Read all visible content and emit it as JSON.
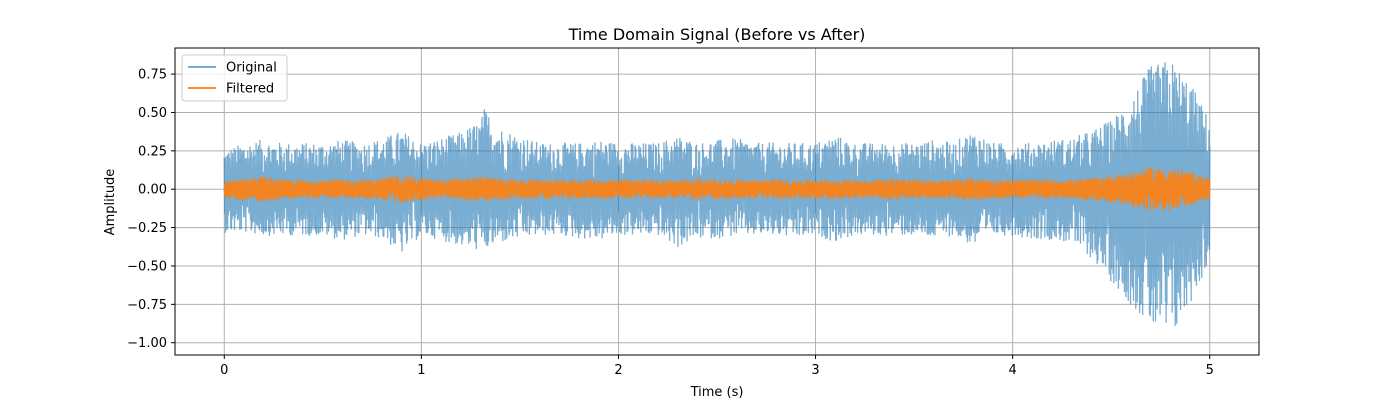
{
  "chart_data": {
    "type": "line",
    "title": "Time Domain Signal (Before vs After)",
    "xlabel": "Time (s)",
    "ylabel": "Amplitude",
    "xlim": [
      -0.25,
      5.25
    ],
    "ylim": [
      -1.08,
      0.92
    ],
    "x_ticks": [
      0,
      1,
      2,
      3,
      4,
      5
    ],
    "x_tick_labels": [
      "0",
      "1",
      "2",
      "3",
      "4",
      "5"
    ],
    "y_ticks": [
      -1.0,
      -0.75,
      -0.5,
      -0.25,
      0.0,
      0.25,
      0.5,
      0.75
    ],
    "y_tick_labels": [
      "−1.00",
      "−0.75",
      "−0.50",
      "−0.25",
      "0.00",
      "0.25",
      "0.50",
      "0.75"
    ],
    "grid": true,
    "legend_position": "top-left",
    "series": [
      {
        "name": "Original",
        "color": "#1f77b4",
        "opacity": 0.6,
        "x": [
          0.0,
          0.1,
          0.2,
          0.3,
          0.4,
          0.5,
          0.6,
          0.7,
          0.8,
          0.9,
          1.0,
          1.1,
          1.2,
          1.3,
          1.32,
          1.4,
          1.5,
          1.6,
          1.7,
          1.8,
          1.9,
          2.0,
          2.1,
          2.2,
          2.3,
          2.4,
          2.5,
          2.6,
          2.7,
          2.8,
          2.9,
          3.0,
          3.1,
          3.2,
          3.3,
          3.4,
          3.5,
          3.6,
          3.7,
          3.8,
          3.9,
          4.0,
          4.1,
          4.2,
          4.3,
          4.4,
          4.5,
          4.6,
          4.7,
          4.8,
          4.9,
          5.0
        ],
        "y_max": [
          0.25,
          0.3,
          0.32,
          0.3,
          0.3,
          0.3,
          0.32,
          0.3,
          0.33,
          0.38,
          0.3,
          0.33,
          0.37,
          0.45,
          0.53,
          0.4,
          0.35,
          0.3,
          0.3,
          0.3,
          0.32,
          0.3,
          0.3,
          0.3,
          0.35,
          0.3,
          0.32,
          0.33,
          0.3,
          0.3,
          0.3,
          0.3,
          0.35,
          0.3,
          0.3,
          0.3,
          0.3,
          0.32,
          0.3,
          0.38,
          0.3,
          0.3,
          0.3,
          0.32,
          0.33,
          0.38,
          0.45,
          0.6,
          0.8,
          0.85,
          0.7,
          0.45
        ],
        "y_min": [
          -0.28,
          -0.28,
          -0.3,
          -0.3,
          -0.3,
          -0.3,
          -0.33,
          -0.3,
          -0.32,
          -0.42,
          -0.3,
          -0.33,
          -0.37,
          -0.4,
          -0.4,
          -0.35,
          -0.32,
          -0.3,
          -0.3,
          -0.32,
          -0.33,
          -0.3,
          -0.3,
          -0.3,
          -0.38,
          -0.32,
          -0.32,
          -0.3,
          -0.3,
          -0.3,
          -0.32,
          -0.3,
          -0.34,
          -0.3,
          -0.3,
          -0.3,
          -0.3,
          -0.32,
          -0.3,
          -0.37,
          -0.3,
          -0.3,
          -0.32,
          -0.33,
          -0.35,
          -0.45,
          -0.6,
          -0.75,
          -0.9,
          -1.0,
          -0.75,
          -0.47
        ]
      },
      {
        "name": "Filtered",
        "color": "#ff7f0e",
        "opacity": 0.9,
        "x": [
          0.0,
          0.1,
          0.2,
          0.3,
          0.4,
          0.5,
          0.6,
          0.7,
          0.8,
          0.9,
          1.0,
          1.1,
          1.2,
          1.3,
          1.4,
          1.5,
          1.6,
          1.7,
          1.8,
          1.9,
          2.0,
          2.1,
          2.2,
          2.3,
          2.4,
          2.5,
          2.6,
          2.7,
          2.8,
          2.9,
          3.0,
          3.1,
          3.2,
          3.3,
          3.4,
          3.5,
          3.6,
          3.7,
          3.8,
          3.9,
          4.0,
          4.1,
          4.2,
          4.3,
          4.4,
          4.5,
          4.6,
          4.7,
          4.8,
          4.9,
          5.0
        ],
        "y_max": [
          0.05,
          0.07,
          0.08,
          0.06,
          0.06,
          0.06,
          0.06,
          0.06,
          0.07,
          0.09,
          0.07,
          0.06,
          0.07,
          0.08,
          0.07,
          0.06,
          0.06,
          0.06,
          0.06,
          0.06,
          0.06,
          0.06,
          0.06,
          0.06,
          0.07,
          0.06,
          0.06,
          0.06,
          0.06,
          0.06,
          0.06,
          0.06,
          0.06,
          0.06,
          0.07,
          0.06,
          0.06,
          0.06,
          0.07,
          0.06,
          0.06,
          0.06,
          0.06,
          0.06,
          0.07,
          0.09,
          0.11,
          0.14,
          0.14,
          0.11,
          0.07
        ],
        "y_min": [
          -0.06,
          -0.07,
          -0.08,
          -0.06,
          -0.06,
          -0.06,
          -0.06,
          -0.06,
          -0.07,
          -0.09,
          -0.07,
          -0.06,
          -0.07,
          -0.08,
          -0.07,
          -0.06,
          -0.06,
          -0.06,
          -0.06,
          -0.06,
          -0.06,
          -0.06,
          -0.06,
          -0.06,
          -0.07,
          -0.06,
          -0.06,
          -0.06,
          -0.06,
          -0.06,
          -0.06,
          -0.06,
          -0.06,
          -0.06,
          -0.07,
          -0.06,
          -0.06,
          -0.06,
          -0.07,
          -0.06,
          -0.06,
          -0.06,
          -0.06,
          -0.06,
          -0.07,
          -0.09,
          -0.11,
          -0.14,
          -0.14,
          -0.11,
          -0.07
        ]
      }
    ]
  }
}
